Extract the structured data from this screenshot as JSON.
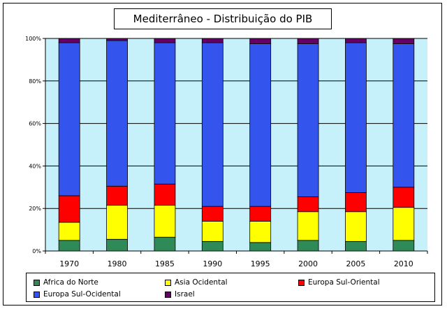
{
  "chart_data": {
    "type": "bar",
    "stacked": true,
    "percent": true,
    "title": "Mediterrâneo - Distribuição do PIB",
    "categories": [
      "1970",
      "1980",
      "1985",
      "1990",
      "1995",
      "2000",
      "2005",
      "2010"
    ],
    "y_ticks": [
      "0%",
      "20%",
      "40%",
      "60%",
      "80%",
      "100%"
    ],
    "ylim": [
      0,
      100
    ],
    "grid": true,
    "legend_position": "bottom",
    "plot_background": "#C6F0FA",
    "series": [
      {
        "name": "Africa do Norte",
        "color": "#2E8B57",
        "values": [
          5,
          5.5,
          6.5,
          4.5,
          4,
          5,
          4.5,
          5
        ]
      },
      {
        "name": "Asia Ocidental",
        "color": "#FFFF00",
        "values": [
          8.5,
          16,
          15,
          9.5,
          10,
          13.5,
          14,
          15.5
        ]
      },
      {
        "name": "Europa Sul-Oriental",
        "color": "#FF0000",
        "values": [
          12.5,
          9,
          10,
          7,
          7,
          7,
          9,
          9.5
        ]
      },
      {
        "name": "Europa Sul-Ocidental",
        "color": "#3355EE",
        "values": [
          72,
          68.5,
          66.5,
          77,
          76.5,
          72,
          70.5,
          67.5
        ]
      },
      {
        "name": "Israel",
        "color": "#660066",
        "values": [
          2,
          1,
          2,
          2,
          2.5,
          2.5,
          2,
          2.5
        ]
      }
    ]
  }
}
